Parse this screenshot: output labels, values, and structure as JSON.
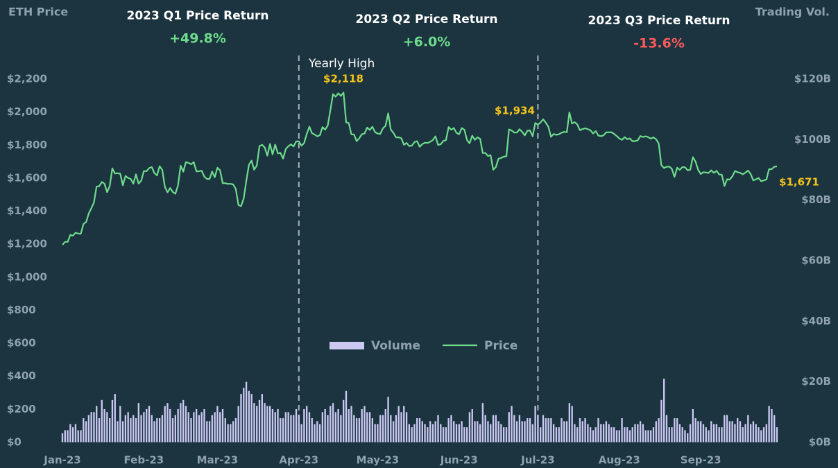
{
  "chart_data": {
    "type": "bar-line",
    "y_label": "ETH Price",
    "y2_label": "Trading Vol.",
    "quarters": [
      {
        "title": "2023  Q1 Price Return",
        "return": "+49.8%",
        "color": "#6fdc8c"
      },
      {
        "title": "2023  Q2 Price Return",
        "return": "+6.0%",
        "color": "#6fdc8c"
      },
      {
        "title": "2023  Q3 Price Return",
        "return": "-13.6%",
        "color": "#ff5a5a"
      }
    ],
    "annotations": [
      "Yearly High",
      "$2,118",
      "$1,934",
      "$1,671"
    ],
    "legend": "center",
    "categories": [
      "Jan-23",
      null,
      null,
      null,
      null,
      null,
      null,
      null,
      null,
      null,
      null,
      null,
      null,
      null,
      null,
      null,
      null,
      null,
      null,
      null,
      null,
      null,
      null,
      null,
      null,
      null,
      null,
      null,
      null,
      null,
      null,
      "Feb-23",
      null,
      null,
      null,
      null,
      null,
      null,
      null,
      null,
      null,
      null,
      null,
      null,
      null,
      null,
      null,
      null,
      null,
      null,
      null,
      null,
      null,
      null,
      null,
      null,
      null,
      null,
      null,
      "Mar-23",
      null,
      null,
      null,
      null,
      null,
      null,
      null,
      null,
      null,
      null,
      null,
      null,
      null,
      null,
      null,
      null,
      null,
      null,
      null,
      null,
      null,
      null,
      null,
      null,
      null,
      null,
      null,
      null,
      null,
      null,
      "Apr-23",
      null,
      null,
      null,
      null,
      null,
      null,
      null,
      null,
      null,
      null,
      null,
      null,
      null,
      null,
      null,
      null,
      null,
      null,
      null,
      null,
      null,
      null,
      null,
      null,
      null,
      null,
      null,
      null,
      null,
      "May-23",
      null,
      null,
      null,
      null,
      null,
      null,
      null,
      null,
      null,
      null,
      null,
      null,
      null,
      null,
      null,
      null,
      null,
      null,
      null,
      null,
      null,
      null,
      null,
      null,
      null,
      null,
      null,
      null,
      null,
      null,
      "Jun-23",
      null,
      null,
      null,
      null,
      null,
      null,
      null,
      null,
      null,
      null,
      null,
      null,
      null,
      null,
      null,
      null,
      null,
      null,
      null,
      null,
      null,
      null,
      null,
      null,
      null,
      null,
      null,
      null,
      null,
      "Jul-23",
      null,
      null,
      null,
      null,
      null,
      null,
      null,
      null,
      null,
      null,
      null,
      null,
      null,
      null,
      null,
      null,
      null,
      null,
      null,
      null,
      null,
      null,
      null,
      null,
      null,
      null,
      null,
      null,
      null,
      null,
      "Aug-23",
      null,
      null,
      null,
      null,
      null,
      null,
      null,
      null,
      null,
      null,
      null,
      null,
      null,
      null,
      null,
      null,
      null,
      null,
      null,
      null,
      null,
      null,
      null,
      null,
      null,
      null,
      null,
      null,
      null,
      null,
      "Sep-23",
      null,
      null,
      null,
      null,
      null,
      null,
      null,
      null,
      null,
      null,
      null,
      null,
      null,
      null,
      null,
      null,
      null,
      null,
      null,
      null,
      null,
      null,
      null,
      null,
      null,
      null,
      null,
      null,
      null
    ],
    "series": [
      {
        "name": "Volume",
        "type": "bar",
        "axis": "y2",
        "color": "#cbc8f2",
        "values": [
          3,
          4,
          4,
          6,
          5,
          6,
          4,
          4,
          8,
          7,
          9,
          10,
          10,
          12,
          8,
          14,
          11,
          10,
          8,
          14,
          16,
          7,
          12,
          7,
          9,
          10,
          8,
          9,
          8,
          13,
          9,
          10,
          11,
          12,
          9,
          7,
          8,
          8,
          9,
          12,
          13,
          11,
          8,
          9,
          11,
          13,
          14,
          12,
          10,
          8,
          10,
          11,
          9,
          10,
          11,
          7,
          7,
          9,
          10,
          12,
          10,
          11,
          8,
          6,
          6,
          7,
          8,
          12,
          16,
          18,
          20,
          17,
          16,
          13,
          12,
          14,
          16,
          13,
          12,
          12,
          11,
          10,
          11,
          8,
          8,
          10,
          10,
          9,
          9,
          11,
          9,
          6,
          11,
          12,
          10,
          8,
          6,
          7,
          6,
          10,
          11,
          9,
          12,
          13,
          10,
          11,
          9,
          14,
          17,
          11,
          12,
          9,
          8,
          8,
          11,
          12,
          10,
          10,
          8,
          6,
          6,
          9,
          9,
          11,
          15,
          9,
          7,
          9,
          12,
          10,
          12,
          10,
          6,
          5,
          6,
          8,
          8,
          7,
          6,
          5,
          7,
          6,
          7,
          9,
          6,
          5,
          5,
          8,
          9,
          7,
          6,
          6,
          7,
          5,
          5,
          10,
          11,
          7,
          7,
          6,
          13,
          9,
          7,
          6,
          9,
          9,
          7,
          6,
          5,
          5,
          10,
          12,
          9,
          7,
          9,
          7,
          7,
          8,
          8,
          6,
          12,
          9,
          5,
          9,
          8,
          8,
          8,
          6,
          5,
          5,
          8,
          7,
          7,
          13,
          12,
          6,
          5,
          8,
          7,
          8,
          6,
          5,
          4,
          5,
          8,
          6,
          6,
          7,
          6,
          5,
          5,
          4,
          4,
          8,
          5,
          5,
          4,
          5,
          6,
          6,
          7,
          6,
          4,
          4,
          4,
          5,
          7,
          8,
          14,
          21,
          9,
          5,
          5,
          8,
          8,
          6,
          5,
          4,
          3,
          6,
          11,
          8,
          7,
          7,
          6,
          5,
          4,
          7,
          6,
          6,
          5,
          5,
          9,
          9,
          7,
          7,
          6,
          8,
          7,
          5,
          6,
          9,
          6,
          7,
          6,
          5,
          4,
          5,
          6,
          12,
          11,
          9,
          5
        ]
      },
      {
        "name": "Price",
        "type": "line",
        "axis": "y",
        "color": "#6fdc8c",
        "values": [
          1196,
          1214,
          1214,
          1256,
          1251,
          1269,
          1264,
          1263,
          1322,
          1334,
          1385,
          1418,
          1452,
          1549,
          1551,
          1577,
          1566,
          1515,
          1552,
          1659,
          1628,
          1630,
          1627,
          1557,
          1613,
          1601,
          1595,
          1566,
          1623,
          1567,
          1585,
          1643,
          1642,
          1661,
          1667,
          1631,
          1616,
          1672,
          1650,
          1547,
          1514,
          1540,
          1516,
          1505,
          1556,
          1675,
          1639,
          1697,
          1692,
          1684,
          1697,
          1641,
          1642,
          1645,
          1609,
          1595,
          1595,
          1640,
          1605,
          1663,
          1648,
          1570,
          1569,
          1565,
          1565,
          1562,
          1534,
          1437,
          1430,
          1476,
          1585,
          1681,
          1706,
          1651,
          1676,
          1793,
          1802,
          1785,
          1736,
          1807,
          1744,
          1803,
          1750,
          1753,
          1718,
          1776,
          1793,
          1804,
          1792,
          1822,
          1823,
          1796,
          1812,
          1868,
          1912,
          1872,
          1864,
          1853,
          1860,
          1909,
          1893,
          1919,
          2013,
          2109,
          2093,
          2114,
          2098,
          2118,
          1937,
          1933,
          1865,
          1864,
          1824,
          1842,
          1866,
          1870,
          1906,
          1892,
          1911,
          1879,
          1870,
          1868,
          1902,
          1917,
          1992,
          1894,
          1874,
          1847,
          1847,
          1842,
          1802,
          1813,
          1794,
          1796,
          1818,
          1824,
          1790,
          1806,
          1814,
          1813,
          1820,
          1830,
          1853,
          1801,
          1805,
          1825,
          1830,
          1909,
          1893,
          1903,
          1874,
          1866,
          1903,
          1893,
          1831,
          1811,
          1857,
          1832,
          1847,
          1838,
          1752,
          1752,
          1734,
          1739,
          1651,
          1667,
          1718,
          1722,
          1730,
          1732,
          1895,
          1889,
          1876,
          1876,
          1896,
          1880,
          1859,
          1887,
          1889,
          1853,
          1934,
          1924,
          1937,
          1956,
          1936,
          1910,
          1850,
          1867,
          1862,
          1866,
          1875,
          1880,
          1878,
          1998,
          1931,
          1939,
          1925,
          1890,
          1897,
          1902,
          1896,
          1890,
          1870,
          1885,
          1858,
          1854,
          1859,
          1877,
          1877,
          1878,
          1868,
          1855,
          1840,
          1832,
          1848,
          1836,
          1840,
          1824,
          1824,
          1829,
          1855,
          1849,
          1853,
          1848,
          1839,
          1847,
          1835,
          1809,
          1678,
          1661,
          1669,
          1670,
          1656,
          1607,
          1663,
          1650,
          1667,
          1666,
          1647,
          1651,
          1727,
          1700,
          1650,
          1625,
          1636,
          1634,
          1631,
          1647,
          1632,
          1644,
          1622,
          1621,
          1552,
          1593,
          1591,
          1610,
          1643,
          1636,
          1632,
          1623,
          1633,
          1646,
          1625,
          1586,
          1593,
          1601,
          1581,
          1586,
          1592,
          1654,
          1654,
          1669,
          1671
        ]
      }
    ],
    "ylim": [
      0,
      2200
    ],
    "yticks": [
      {
        "value": 0,
        "label": "$0"
      },
      {
        "value": 200,
        "label": "$200"
      },
      {
        "value": 400,
        "label": "$400"
      },
      {
        "value": 600,
        "label": "$600"
      },
      {
        "value": 800,
        "label": "$800"
      },
      {
        "value": 1000,
        "label": "$1,000"
      },
      {
        "value": 1200,
        "label": "$1,200"
      },
      {
        "value": 1400,
        "label": "$1,400"
      },
      {
        "value": 1600,
        "label": "$1,600"
      },
      {
        "value": 1800,
        "label": "$1,800"
      },
      {
        "value": 2000,
        "label": "$2,000"
      },
      {
        "value": 2200,
        "label": "$2,200"
      }
    ],
    "y2lim": [
      0,
      120
    ],
    "y2ticks": [
      {
        "value": 0,
        "label": "$0B"
      },
      {
        "value": 20,
        "label": "$20B"
      },
      {
        "value": 40,
        "label": "$40B"
      },
      {
        "value": 60,
        "label": "$60B"
      },
      {
        "value": 80,
        "label": "$80B"
      },
      {
        "value": 100,
        "label": "$100B"
      },
      {
        "value": 120,
        "label": "$120B"
      }
    ],
    "grid": false
  }
}
